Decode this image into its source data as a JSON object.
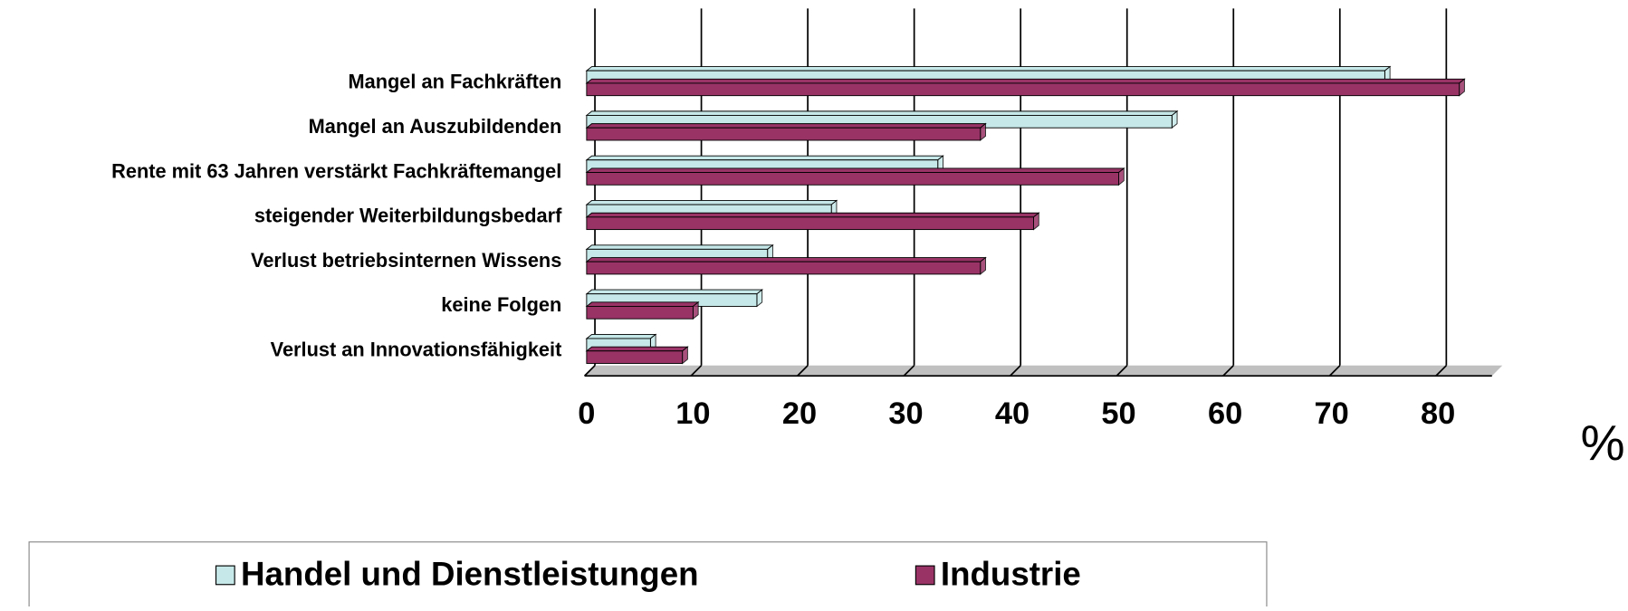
{
  "chart_data": {
    "type": "bar",
    "orientation": "horizontal",
    "categories": [
      "Mangel an Fachkräften",
      "Mangel an Auszubildenden",
      "Rente mit 63 Jahren verstärkt Fachkräftemangel",
      "steigender Weiterbildungsbedarf",
      "Verlust betriebsinternen Wissens",
      "keine Folgen",
      "Verlust an Innovationsfähigkeit"
    ],
    "series": [
      {
        "name": "Handel und Dienstleistungen",
        "color": "#c6e8e8",
        "values": [
          75,
          55,
          33,
          23,
          17,
          16,
          6
        ]
      },
      {
        "name": "Industrie",
        "color": "#993366",
        "values": [
          82,
          37,
          50,
          42,
          37,
          10,
          9
        ]
      }
    ],
    "xlabel": "%",
    "xlim": [
      0,
      85
    ],
    "xticks": [
      0,
      10,
      20,
      30,
      40,
      50,
      60,
      70,
      80
    ],
    "grid": true
  }
}
